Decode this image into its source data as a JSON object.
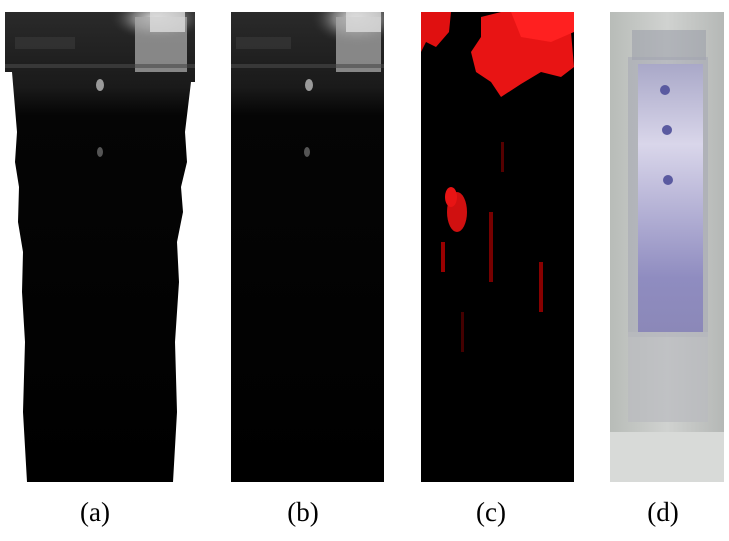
{
  "figure": {
    "panels": [
      {
        "label": "(a)",
        "content": "grayscale-scan-masked"
      },
      {
        "label": "(b)",
        "content": "grayscale-scan"
      },
      {
        "label": "(c)",
        "content": "red-heatmap"
      },
      {
        "label": "(d)",
        "content": "specimen-photo"
      }
    ]
  }
}
